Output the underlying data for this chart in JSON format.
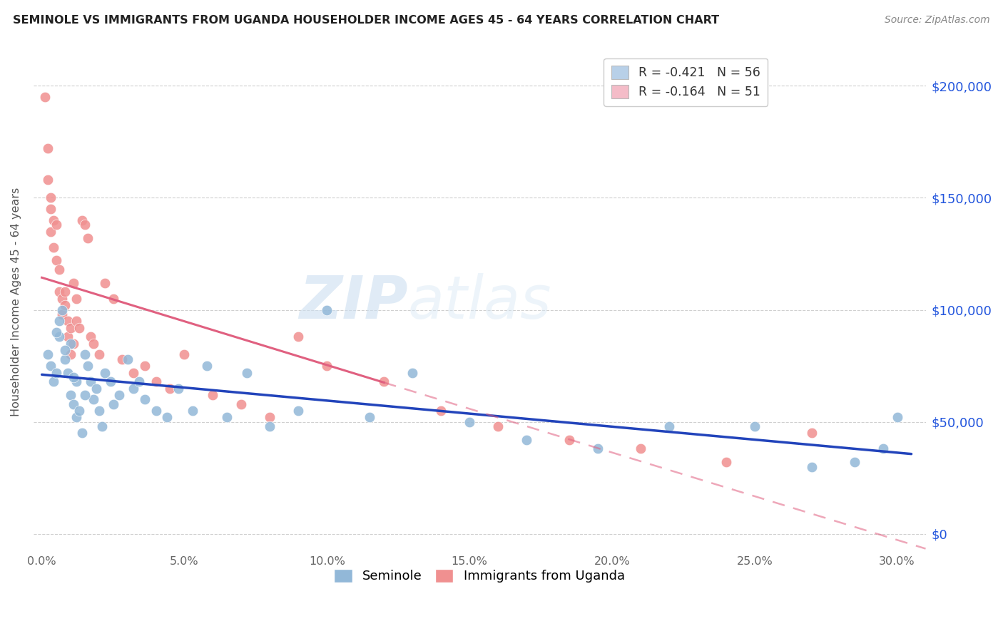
{
  "title": "SEMINOLE VS IMMIGRANTS FROM UGANDA HOUSEHOLDER INCOME AGES 45 - 64 YEARS CORRELATION CHART",
  "source": "Source: ZipAtlas.com",
  "ylabel": "Householder Income Ages 45 - 64 years",
  "ytick_labels": [
    "$0",
    "$50,000",
    "$100,000",
    "$150,000",
    "$200,000"
  ],
  "ytick_values": [
    0,
    50000,
    100000,
    150000,
    200000
  ],
  "xtick_labels": [
    "0.0%",
    "5.0%",
    "10.0%",
    "15.0%",
    "20.0%",
    "25.0%",
    "30.0%"
  ],
  "xtick_values": [
    0.0,
    0.05,
    0.1,
    0.15,
    0.2,
    0.25,
    0.3
  ],
  "xlim": [
    -0.003,
    0.31
  ],
  "ylim": [
    -8000,
    215000
  ],
  "seminole_R": "-0.421",
  "seminole_N": "56",
  "uganda_R": "-0.164",
  "uganda_N": "51",
  "seminole_dot_color": "#92b8d8",
  "uganda_dot_color": "#f09090",
  "seminole_line_color": "#2244bb",
  "uganda_line_color": "#e06080",
  "seminole_legend_color": "#b8d0e8",
  "uganda_legend_color": "#f4bcc8",
  "watermark_color": "#ccdff0",
  "seminole_x": [
    0.002,
    0.003,
    0.004,
    0.005,
    0.006,
    0.006,
    0.007,
    0.008,
    0.009,
    0.01,
    0.01,
    0.011,
    0.012,
    0.012,
    0.013,
    0.014,
    0.015,
    0.016,
    0.017,
    0.018,
    0.019,
    0.02,
    0.021,
    0.022,
    0.024,
    0.025,
    0.027,
    0.03,
    0.032,
    0.034,
    0.036,
    0.04,
    0.044,
    0.048,
    0.053,
    0.058,
    0.065,
    0.072,
    0.08,
    0.09,
    0.1,
    0.115,
    0.13,
    0.15,
    0.17,
    0.195,
    0.22,
    0.25,
    0.27,
    0.285,
    0.295,
    0.3,
    0.005,
    0.008,
    0.011,
    0.015
  ],
  "seminole_y": [
    80000,
    75000,
    68000,
    72000,
    88000,
    95000,
    100000,
    78000,
    72000,
    62000,
    85000,
    58000,
    68000,
    52000,
    55000,
    45000,
    80000,
    75000,
    68000,
    60000,
    65000,
    55000,
    48000,
    72000,
    68000,
    58000,
    62000,
    78000,
    65000,
    68000,
    60000,
    55000,
    52000,
    65000,
    55000,
    75000,
    52000,
    72000,
    48000,
    55000,
    100000,
    52000,
    72000,
    50000,
    42000,
    38000,
    48000,
    48000,
    30000,
    32000,
    38000,
    52000,
    90000,
    82000,
    70000,
    62000
  ],
  "uganda_x": [
    0.001,
    0.002,
    0.002,
    0.003,
    0.003,
    0.003,
    0.004,
    0.004,
    0.005,
    0.005,
    0.006,
    0.006,
    0.007,
    0.007,
    0.008,
    0.008,
    0.009,
    0.009,
    0.01,
    0.01,
    0.011,
    0.011,
    0.012,
    0.012,
    0.013,
    0.014,
    0.015,
    0.016,
    0.017,
    0.018,
    0.02,
    0.022,
    0.025,
    0.028,
    0.032,
    0.036,
    0.04,
    0.045,
    0.05,
    0.06,
    0.07,
    0.08,
    0.09,
    0.1,
    0.12,
    0.14,
    0.16,
    0.185,
    0.21,
    0.24,
    0.27
  ],
  "uganda_y": [
    195000,
    172000,
    158000,
    150000,
    145000,
    135000,
    140000,
    128000,
    138000,
    122000,
    118000,
    108000,
    105000,
    98000,
    108000,
    102000,
    95000,
    88000,
    92000,
    80000,
    112000,
    85000,
    105000,
    95000,
    92000,
    140000,
    138000,
    132000,
    88000,
    85000,
    80000,
    112000,
    105000,
    78000,
    72000,
    75000,
    68000,
    65000,
    80000,
    62000,
    58000,
    52000,
    88000,
    75000,
    68000,
    55000,
    48000,
    42000,
    38000,
    32000,
    45000
  ]
}
